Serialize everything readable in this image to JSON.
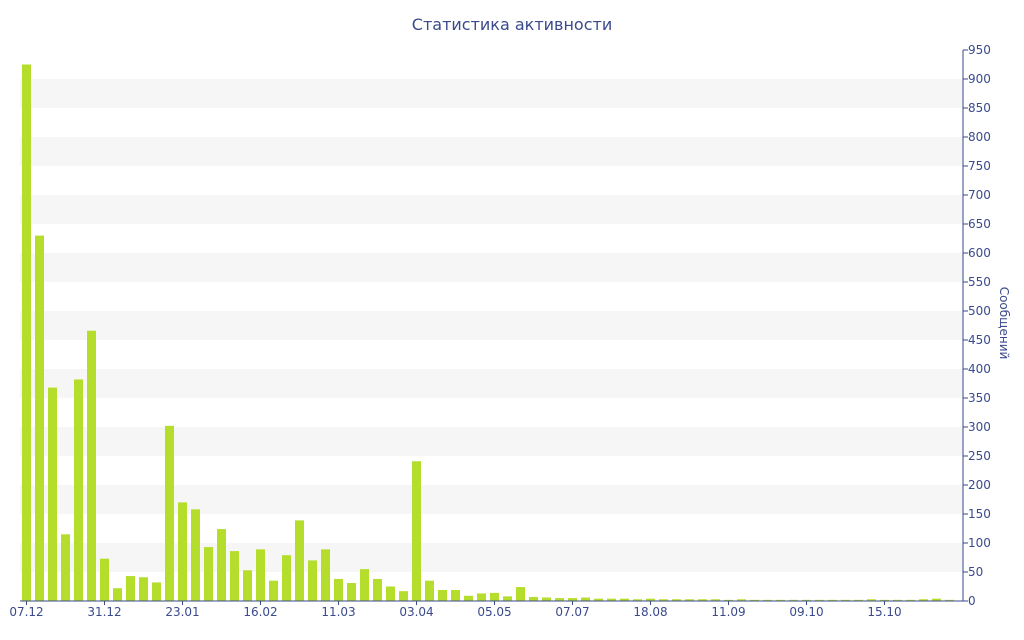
{
  "title": "Статистика активности",
  "colors": {
    "bar": "#b5dd2c",
    "text": "#3a4a8c",
    "band": "#f6f6f6",
    "axis": "#3a4a8c"
  },
  "chart_data": {
    "type": "bar",
    "title": "Статистика активности",
    "xlabel": "",
    "ylabel": "Сообщений",
    "y_axis_position": "right",
    "ylim": [
      0,
      950
    ],
    "yticks": [
      0,
      50,
      100,
      150,
      200,
      250,
      300,
      350,
      400,
      450,
      500,
      550,
      600,
      650,
      700,
      750,
      800,
      850,
      900,
      950
    ],
    "xtick_labels": [
      "07.12",
      "31.12",
      "23.01",
      "16.02",
      "11.03",
      "03.04",
      "05.05",
      "07.07",
      "18.08",
      "11.09",
      "09.10",
      "15.10"
    ],
    "xtick_index": [
      0,
      6,
      12,
      18,
      24,
      30,
      36,
      42,
      48,
      54,
      60,
      66
    ],
    "grid": "alternating horizontal bands",
    "legend": "none",
    "values": [
      925,
      630,
      368,
      115,
      382,
      466,
      73,
      22,
      43,
      41,
      32,
      302,
      170,
      158,
      93,
      124,
      86,
      53,
      89,
      35,
      79,
      139,
      70,
      89,
      38,
      31,
      55,
      38,
      25,
      17,
      241,
      35,
      19,
      19,
      9,
      13,
      14,
      8,
      24,
      7,
      6,
      5,
      5,
      6,
      4,
      4,
      4,
      3,
      4,
      3,
      3,
      3,
      3,
      3,
      2,
      3,
      2,
      2,
      2,
      2,
      2,
      2,
      2,
      2,
      2,
      3,
      2,
      2,
      2,
      3,
      4,
      2
    ]
  }
}
